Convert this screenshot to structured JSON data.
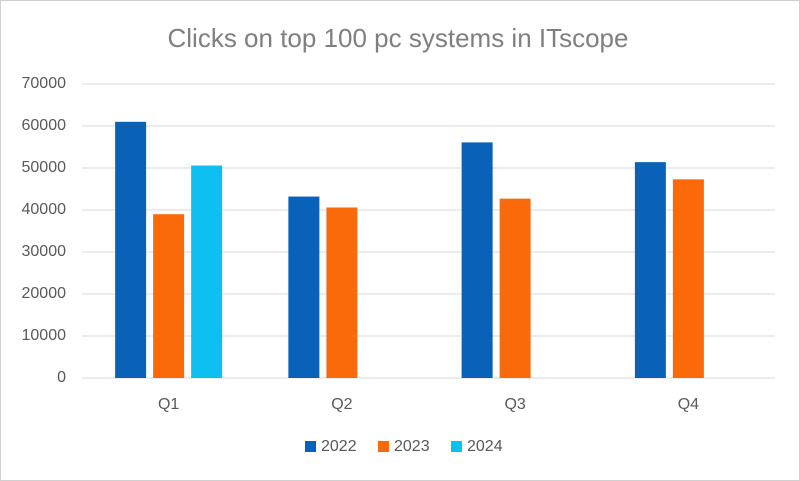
{
  "chart_data": {
    "type": "bar",
    "title": "Clicks on top 100 pc systems in ITscope",
    "categories": [
      "Q1",
      "Q2",
      "Q3",
      "Q4"
    ],
    "series": [
      {
        "name": "2022",
        "color": "#0a62b8",
        "values": [
          61000,
          43200,
          56100,
          51400
        ]
      },
      {
        "name": "2023",
        "color": "#fa6a0a",
        "values": [
          39000,
          40600,
          42700,
          47300
        ]
      },
      {
        "name": "2024",
        "color": "#0ec0f0",
        "values": [
          50600,
          null,
          null,
          null
        ]
      }
    ],
    "ylim": [
      0,
      70000
    ],
    "yticks": [
      0,
      10000,
      20000,
      30000,
      40000,
      50000,
      60000,
      70000
    ],
    "grid": true,
    "legend": "bottom"
  }
}
